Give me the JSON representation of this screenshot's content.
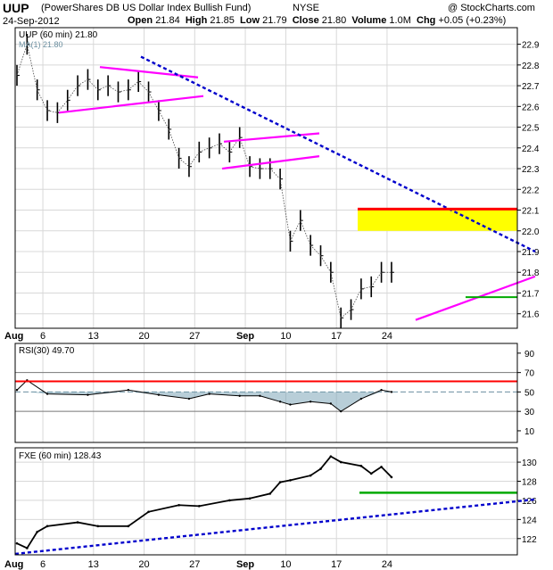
{
  "header": {
    "symbol": "UUP",
    "name": "(PowerShares DB US Dollar Index Bullish Fund)",
    "exchange": "NYSE",
    "date": "24-Sep-2012",
    "copyright": "@ StockCharts.com",
    "open_label": "Open",
    "open": "21.84",
    "high_label": "High",
    "high": "21.85",
    "low_label": "Low",
    "low": "21.79",
    "close_label": "Close",
    "close": "21.80",
    "volume_label": "Volume",
    "volume": "1.0M",
    "chg_label": "Chg",
    "chg": "+0.05 (+0.23%)"
  },
  "colors": {
    "price_bars": "#000000",
    "pink_trendlines": "#ff00ff",
    "blue_trendlines": "#0000cc",
    "red_resistance": "#ff0000",
    "yellow_zone": "#ffff00",
    "green_support": "#00aa00",
    "rsi_fill": "#7ea6b8",
    "grid": "#d8d8d8",
    "panel_border": "#000000"
  },
  "chart_data": [
    {
      "type": "line",
      "panel": "price",
      "title": "UUP (60 min) 21.80",
      "legend": [
        "UUP (60 min) 21.80",
        "MA(1) 21.80"
      ],
      "legend_placement": "top-left",
      "x_ticks": [
        "Aug",
        "6",
        "13",
        "20",
        "27",
        "Sep",
        "10",
        "17",
        "24"
      ],
      "y_ticks": [
        21.6,
        21.7,
        21.8,
        21.9,
        22.0,
        22.1,
        22.2,
        22.3,
        22.4,
        22.5,
        22.6,
        22.7,
        22.8,
        22.9
      ],
      "ylim": [
        21.53,
        22.98
      ],
      "grid": true,
      "series": [
        {
          "name": "UUP (60 min) 21.80",
          "x": [
            "Aug 1",
            "Aug 2",
            "Aug 3",
            "Aug 6",
            "Aug 7",
            "Aug 8",
            "Aug 9",
            "Aug 10",
            "Aug 13",
            "Aug 14",
            "Aug 15",
            "Aug 16",
            "Aug 17",
            "Aug 20",
            "Aug 21",
            "Aug 22",
            "Aug 23",
            "Aug 24",
            "Aug 27",
            "Aug 28",
            "Aug 29",
            "Aug 30",
            "Aug 31",
            "Sep 4",
            "Sep 5",
            "Sep 6",
            "Sep 7",
            "Sep 10",
            "Sep 11",
            "Sep 12",
            "Sep 13",
            "Sep 14",
            "Sep 17",
            "Sep 18",
            "Sep 19",
            "Sep 20",
            "Sep 21",
            "Sep 24"
          ],
          "values": [
            22.75,
            22.9,
            22.68,
            22.58,
            22.57,
            22.63,
            22.7,
            22.73,
            22.68,
            22.7,
            22.67,
            22.68,
            22.72,
            22.67,
            22.58,
            22.49,
            22.35,
            22.31,
            22.38,
            22.4,
            22.42,
            22.38,
            22.45,
            22.31,
            22.3,
            22.3,
            22.25,
            21.95,
            22.05,
            21.93,
            21.88,
            21.8,
            21.58,
            21.62,
            21.72,
            21.73,
            21.8,
            21.8
          ]
        }
      ],
      "annotations": [
        "pink triangle Aug 8–Aug 20",
        "pink rising channel Aug 23–Sep 5",
        "blue dotted falling trendline",
        "yellow zone 22.00–22.10",
        "red resistance at 22.11",
        "green support at 21.68",
        "pink rising trendline from Sep 14"
      ]
    },
    {
      "type": "line",
      "panel": "rsi",
      "title": "RSI(30) 49.70",
      "y_ticks": [
        10,
        30,
        50,
        70,
        90
      ],
      "ylim": [
        -2,
        100
      ],
      "reference_lines": [
        30,
        50,
        70
      ],
      "red_line": 61,
      "series": [
        {
          "name": "RSI(30) 49.70",
          "x": [
            "Aug 1",
            "Aug 2",
            "Aug 6",
            "Aug 10",
            "Aug 16",
            "Aug 21",
            "Aug 24",
            "Aug 28",
            "Aug 31",
            "Sep 5",
            "Sep 7",
            "Sep 10",
            "Sep 12",
            "Sep 14",
            "Sep 17",
            "Sep 19",
            "Sep 21",
            "Sep 24"
          ],
          "values": [
            52,
            62,
            48,
            47,
            52,
            47,
            43,
            48,
            46,
            46,
            40,
            37,
            40,
            38,
            30,
            43,
            52,
            50
          ]
        }
      ]
    },
    {
      "type": "line",
      "panel": "fxe",
      "title": "FXE (60 min) 128.43",
      "y_ticks": [
        122,
        124,
        126,
        128,
        130
      ],
      "ylim": [
        120.3,
        131.5
      ],
      "grid": true,
      "series": [
        {
          "name": "FXE (60 min) 128.43",
          "x": [
            "Aug 1",
            "Aug 2",
            "Aug 3",
            "Aug 6",
            "Aug 9",
            "Aug 13",
            "Aug 16",
            "Aug 20",
            "Aug 23",
            "Aug 27",
            "Aug 30",
            "Sep 4",
            "Sep 6",
            "Sep 7",
            "Sep 10",
            "Sep 12",
            "Sep 13",
            "Sep 14",
            "Sep 17",
            "Sep 19",
            "Sep 20",
            "Sep 21",
            "Sep 24"
          ],
          "values": [
            121.5,
            121.0,
            122.7,
            123.3,
            123.7,
            123.3,
            123.3,
            124.8,
            125.5,
            125.4,
            126.0,
            126.2,
            126.7,
            127.9,
            128.1,
            128.6,
            129.3,
            130.6,
            130.0,
            129.6,
            128.8,
            129.5,
            128.43
          ]
        }
      ],
      "annotations": [
        "green support at 126.8",
        "blue dotted rising trendline"
      ]
    }
  ]
}
